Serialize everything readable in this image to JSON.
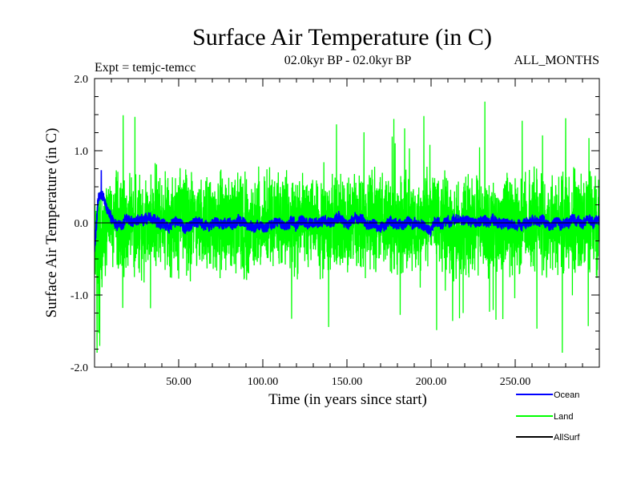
{
  "chart_data": {
    "type": "line",
    "title": "Surface Air Temperature (in C)",
    "subtitle_left": "Expt = temjc-temcc",
    "subtitle_center": "02.0kyr BP - 02.0kyr BP",
    "subtitle_right": "ALL_MONTHS",
    "xlabel": "Time (in years since start)",
    "ylabel": "Surface Air Temperature (in C)",
    "xlim": [
      0,
      300
    ],
    "ylim": [
      -2.0,
      2.0
    ],
    "xticks": [
      50,
      100,
      150,
      200,
      250
    ],
    "xtick_labels": [
      "50.00",
      "100.00",
      "150.00",
      "200.00",
      "250.00"
    ],
    "yticks": [
      -2.0,
      -1.0,
      0.0,
      1.0,
      2.0
    ],
    "ytick_labels": [
      "-2.0",
      "-1.0",
      "0.0",
      "1.0",
      "2.0"
    ],
    "zero_line": true,
    "legend_position": "bottom-right",
    "series": [
      {
        "name": "Ocean",
        "color": "#0000ff",
        "note": "monthly anomaly, approx. range -0.7 to 0.75 (peak ~0.73 near year 4)",
        "n_points": 3600,
        "amplitude": 0.14,
        "noise": 0.07,
        "spinup_peak": 0.73
      },
      {
        "name": "Land",
        "color": "#00ff00",
        "note": "monthly anomaly, approx. range -1.8 to 1.68 (max ~1.68 near year 232)",
        "n_points": 3600,
        "amplitude": 0.55,
        "spike_max": 1.68,
        "spike_min": -1.8
      },
      {
        "name": "AllSurf",
        "color": "#000000",
        "note": "legend entry only; not visible in plot",
        "n_points": 0
      }
    ]
  }
}
